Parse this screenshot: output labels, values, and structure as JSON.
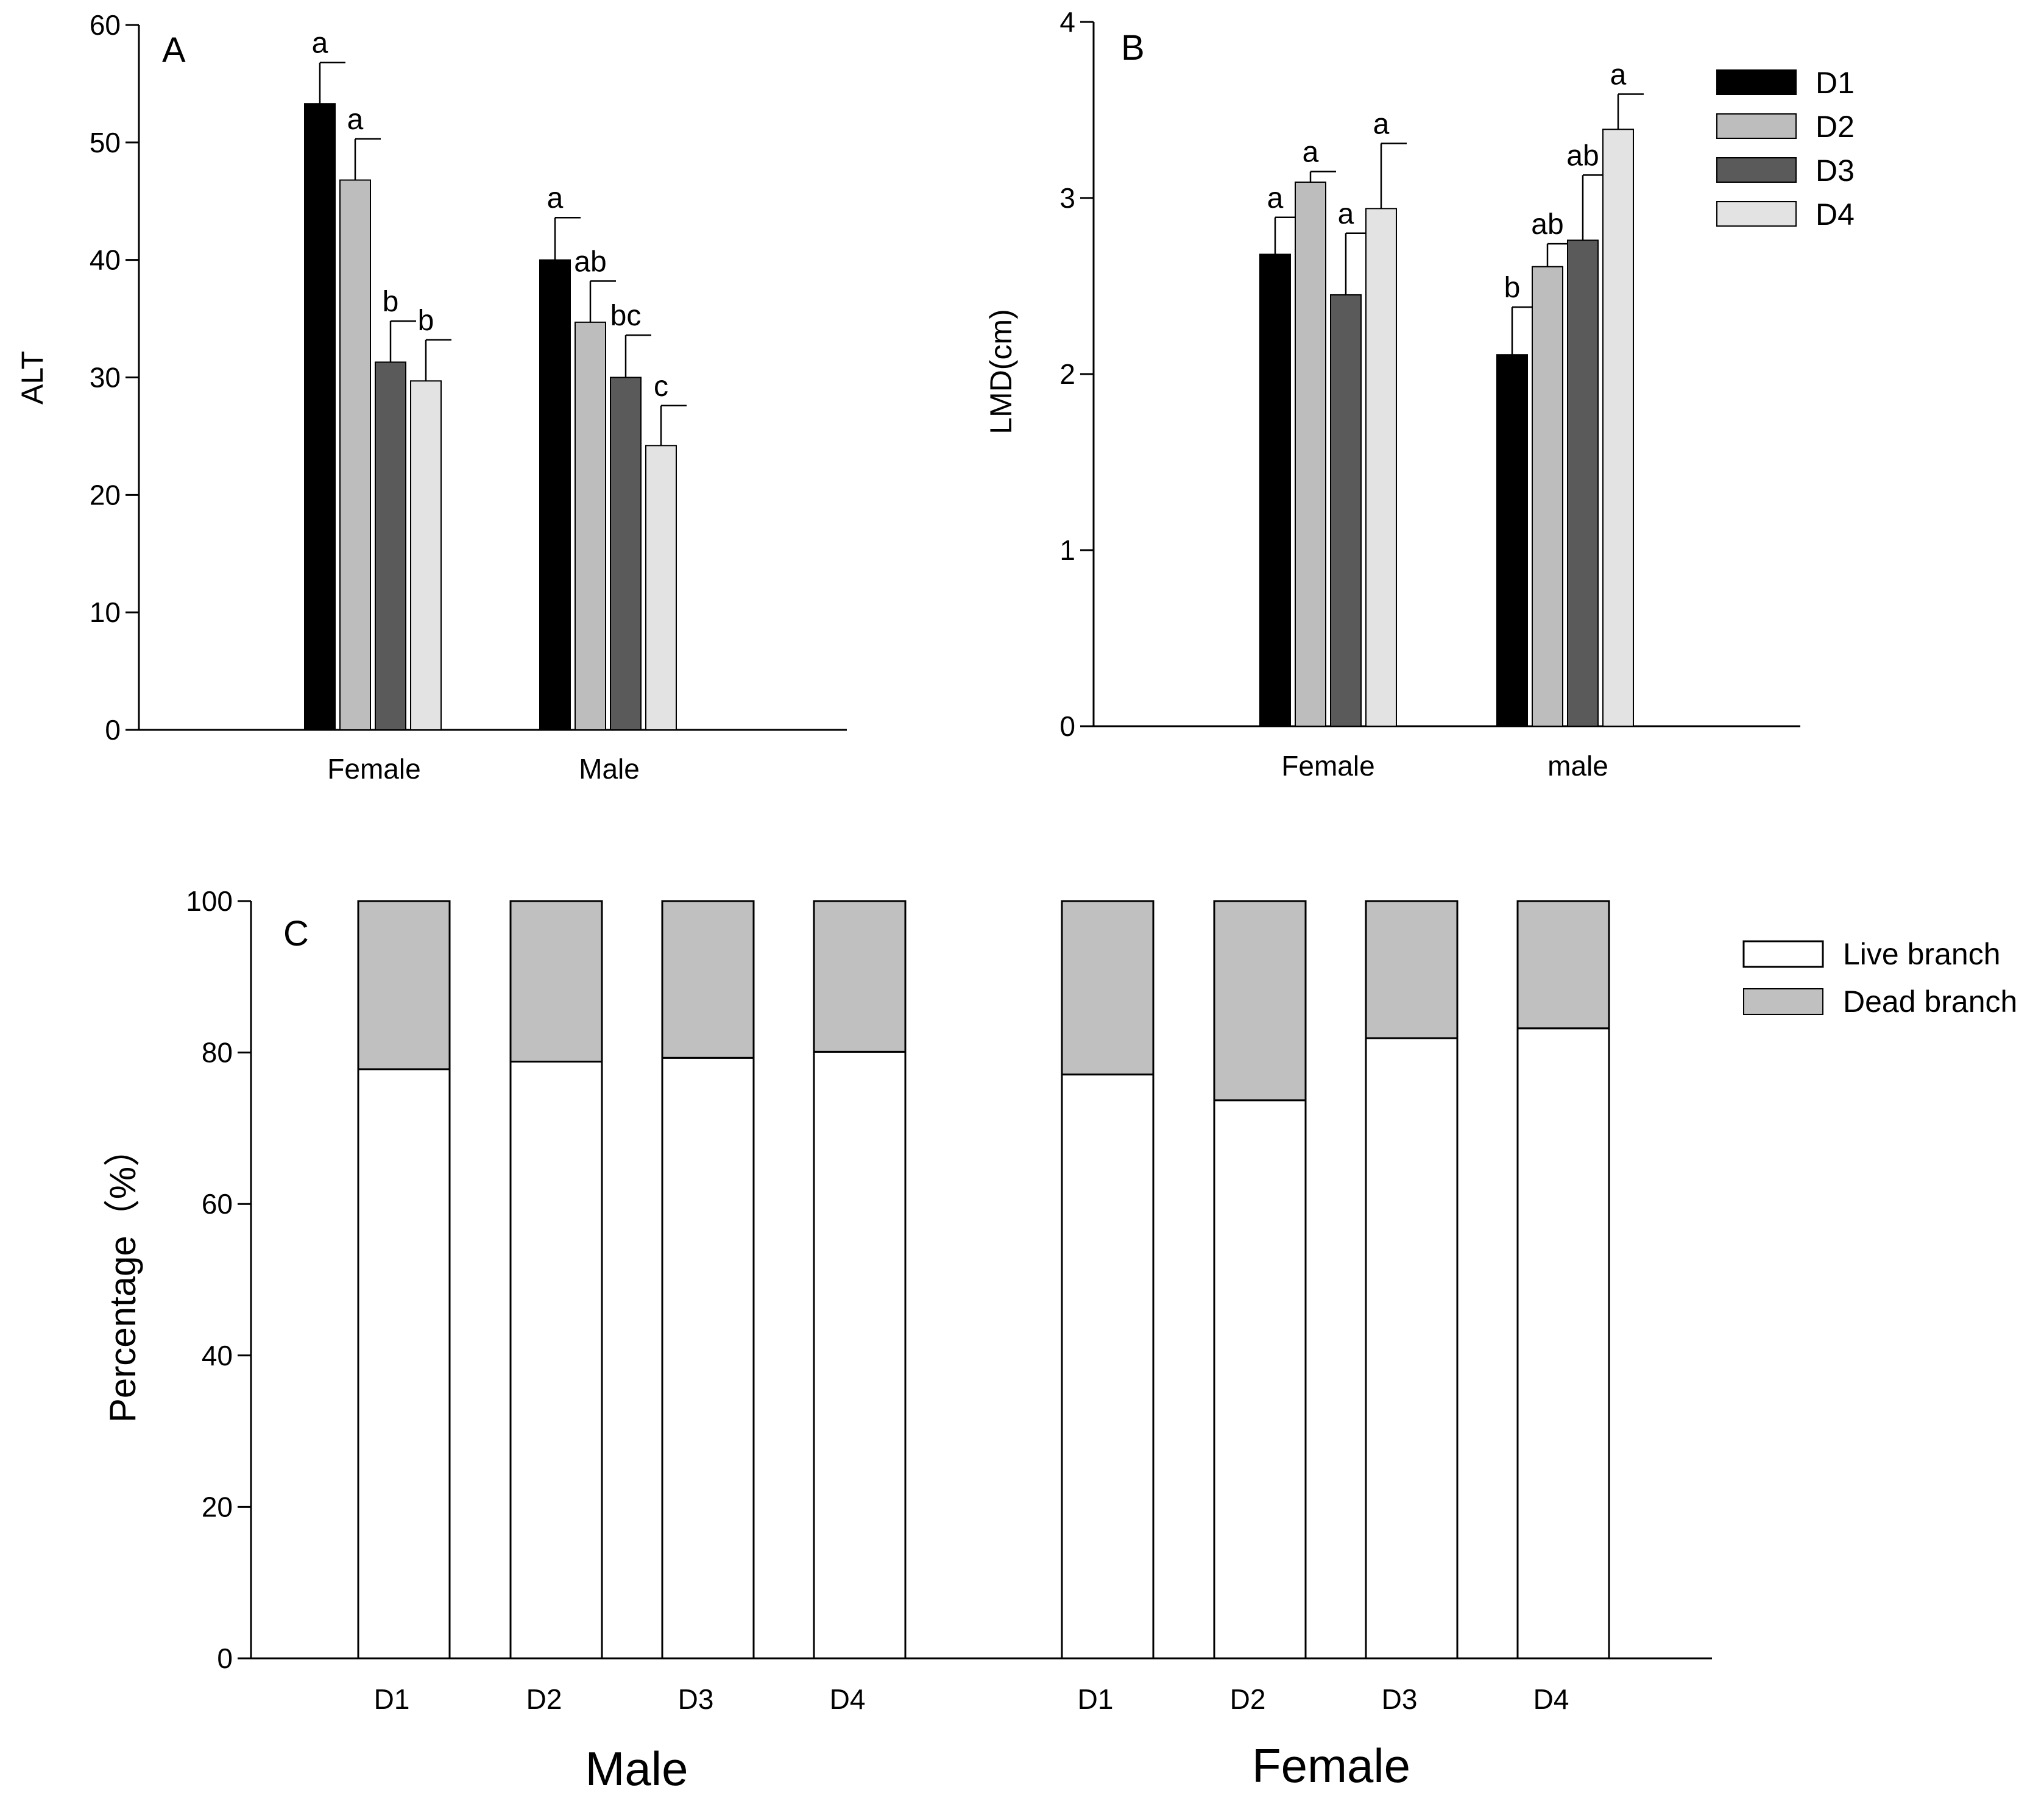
{
  "legend_ab": {
    "entries": [
      {
        "name": "D1",
        "color": "#000000"
      },
      {
        "name": "D2",
        "color": "#bdbdbd"
      },
      {
        "name": "D3",
        "color": "#5a5a5a"
      },
      {
        "name": "D4",
        "color": "#e3e3e3"
      }
    ]
  },
  "chart_data": [
    {
      "id": "A",
      "type": "bar",
      "panel_label": "A",
      "title": "",
      "xlabel": "",
      "ylabel": "ALT",
      "ylim": [
        0,
        60
      ],
      "yticks": [
        0,
        10,
        20,
        30,
        40,
        50,
        60
      ],
      "categories": [
        "Female",
        "Male"
      ],
      "series": [
        {
          "name": "D1",
          "color": "#000000",
          "values": [
            53.3,
            40.0
          ],
          "errors": [
            3.5,
            3.6
          ],
          "labels": [
            "a",
            "a"
          ]
        },
        {
          "name": "D2",
          "color": "#bdbdbd",
          "values": [
            46.8,
            34.7
          ],
          "errors": [
            3.5,
            3.5
          ],
          "labels": [
            "a",
            "ab"
          ]
        },
        {
          "name": "D3",
          "color": "#5a5a5a",
          "values": [
            31.3,
            30.0
          ],
          "errors": [
            3.5,
            3.6
          ],
          "labels": [
            "b",
            "bc"
          ]
        },
        {
          "name": "D4",
          "color": "#e3e3e3",
          "values": [
            29.7,
            24.2
          ],
          "errors": [
            3.5,
            3.4
          ],
          "labels": [
            "b",
            "c"
          ]
        }
      ]
    },
    {
      "id": "B",
      "type": "bar",
      "panel_label": "B",
      "title": "",
      "xlabel": "",
      "ylabel": "LMD(cm)",
      "ylim": [
        0,
        4
      ],
      "yticks": [
        0,
        1,
        2,
        3,
        4
      ],
      "categories": [
        "Female",
        "male"
      ],
      "series": [
        {
          "name": "D1",
          "color": "#000000",
          "values": [
            2.68,
            2.11
          ],
          "errors": [
            0.21,
            0.27
          ],
          "labels": [
            "a",
            "b"
          ]
        },
        {
          "name": "D2",
          "color": "#bdbdbd",
          "values": [
            3.09,
            2.61
          ],
          "errors": [
            0.06,
            0.13
          ],
          "labels": [
            "a",
            "ab"
          ]
        },
        {
          "name": "D3",
          "color": "#5a5a5a",
          "values": [
            2.45,
            2.76
          ],
          "errors": [
            0.35,
            0.37
          ],
          "labels": [
            "a",
            "ab"
          ]
        },
        {
          "name": "D4",
          "color": "#e3e3e3",
          "values": [
            2.94,
            3.39
          ],
          "errors": [
            0.37,
            0.2
          ],
          "labels": [
            "a",
            "a"
          ]
        }
      ]
    },
    {
      "id": "C",
      "type": "stacked-bar",
      "panel_label": "C",
      "title": "",
      "xlabel": "",
      "ylabel": "Percentage（%）",
      "ylim": [
        0,
        100
      ],
      "yticks": [
        0,
        20,
        40,
        60,
        80,
        100
      ],
      "groups": [
        "Male",
        "Female"
      ],
      "categories": [
        "D1",
        "D2",
        "D3",
        "D4",
        "D1",
        "D2",
        "D3",
        "D4"
      ],
      "series": [
        {
          "name": "Live branch",
          "color": "#ffffff",
          "values": [
            77.8,
            78.8,
            79.3,
            80.1,
            77.1,
            73.7,
            81.9,
            83.2
          ]
        },
        {
          "name": "Dead branch",
          "color": "#c0c0c0",
          "values": [
            22.2,
            21.2,
            20.7,
            19.9,
            22.9,
            26.3,
            18.1,
            16.8
          ]
        }
      ],
      "legend": [
        "Live branch",
        "Dead branch"
      ]
    }
  ]
}
